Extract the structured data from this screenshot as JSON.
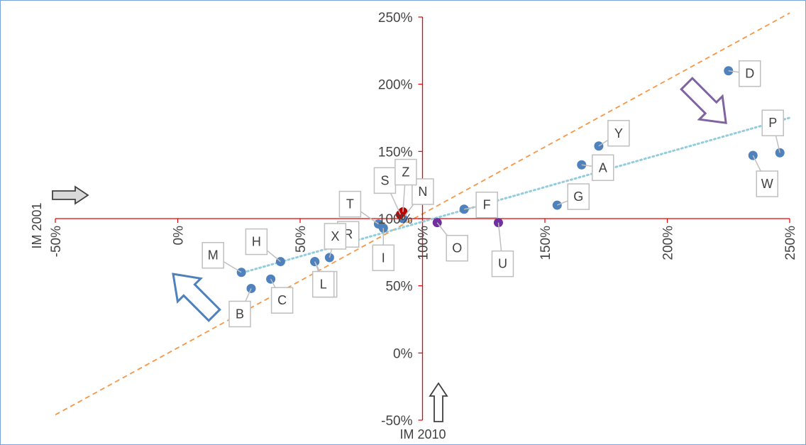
{
  "chart_data": {
    "type": "scatter",
    "x_axis_title": "IM 2010",
    "y_axis_title": "IM 2001",
    "x_range": [
      -50,
      250
    ],
    "y_range": [
      -50,
      250
    ],
    "x_ticks": [
      "-50%",
      "0%",
      "50%",
      "100%",
      "150%",
      "200%",
      "250%"
    ],
    "y_ticks": [
      "-50%",
      "0%",
      "50%",
      "100%",
      "150%",
      "200%",
      "250%"
    ],
    "axis_color": "#e60000",
    "point_color": "#4f81bd",
    "highlight_color": "#7030a0",
    "red_point_color": "#c00000",
    "points": [
      {
        "label": "A",
        "x": 165,
        "y": 140
      },
      {
        "label": "B",
        "x": 30,
        "y": 48
      },
      {
        "label": "C",
        "x": 38,
        "y": 55
      },
      {
        "label": "D",
        "x": 225,
        "y": 210
      },
      {
        "label": "E",
        "x": 56,
        "y": 68
      },
      {
        "label": "F",
        "x": 117,
        "y": 107
      },
      {
        "label": "G",
        "x": 155,
        "y": 110
      },
      {
        "label": "H",
        "x": 42,
        "y": 68
      },
      {
        "label": "I",
        "x": 84,
        "y": 93
      },
      {
        "label": "L",
        "x": 56,
        "y": 68
      },
      {
        "label": "M",
        "x": 26,
        "y": 60
      },
      {
        "label": "N",
        "x": 92,
        "y": 100
      },
      {
        "label": "O",
        "x": 106,
        "y": 97
      },
      {
        "label": "P",
        "x": 246,
        "y": 149
      },
      {
        "label": "R",
        "x": 65,
        "y": 83
      },
      {
        "label": "S",
        "x": 91,
        "y": 103
      },
      {
        "label": "T",
        "x": 82,
        "y": 96
      },
      {
        "label": "U",
        "x": 131,
        "y": 97
      },
      {
        "label": "W",
        "x": 235,
        "y": 147
      },
      {
        "label": "X",
        "x": 62,
        "y": 71
      },
      {
        "label": "Y",
        "x": 172,
        "y": 154
      },
      {
        "label": "Z",
        "x": 92,
        "y": 105
      }
    ],
    "diagonal_line": {
      "style": "dashed",
      "color": "#f79646",
      "from": [
        -50,
        -46
      ],
      "to": [
        250,
        253
      ]
    },
    "trend_line": {
      "style": "dotted",
      "color": "#93cddd",
      "from": [
        25,
        59
      ],
      "to": [
        250,
        175
      ]
    },
    "arrows": [
      {
        "name": "up-left-arrow",
        "color": "#4f81bd"
      },
      {
        "name": "down-right-arrow",
        "color": "#8064a2"
      },
      {
        "name": "right-arrow",
        "color": "#404040"
      },
      {
        "name": "up-arrow",
        "color": "#404040"
      }
    ]
  }
}
